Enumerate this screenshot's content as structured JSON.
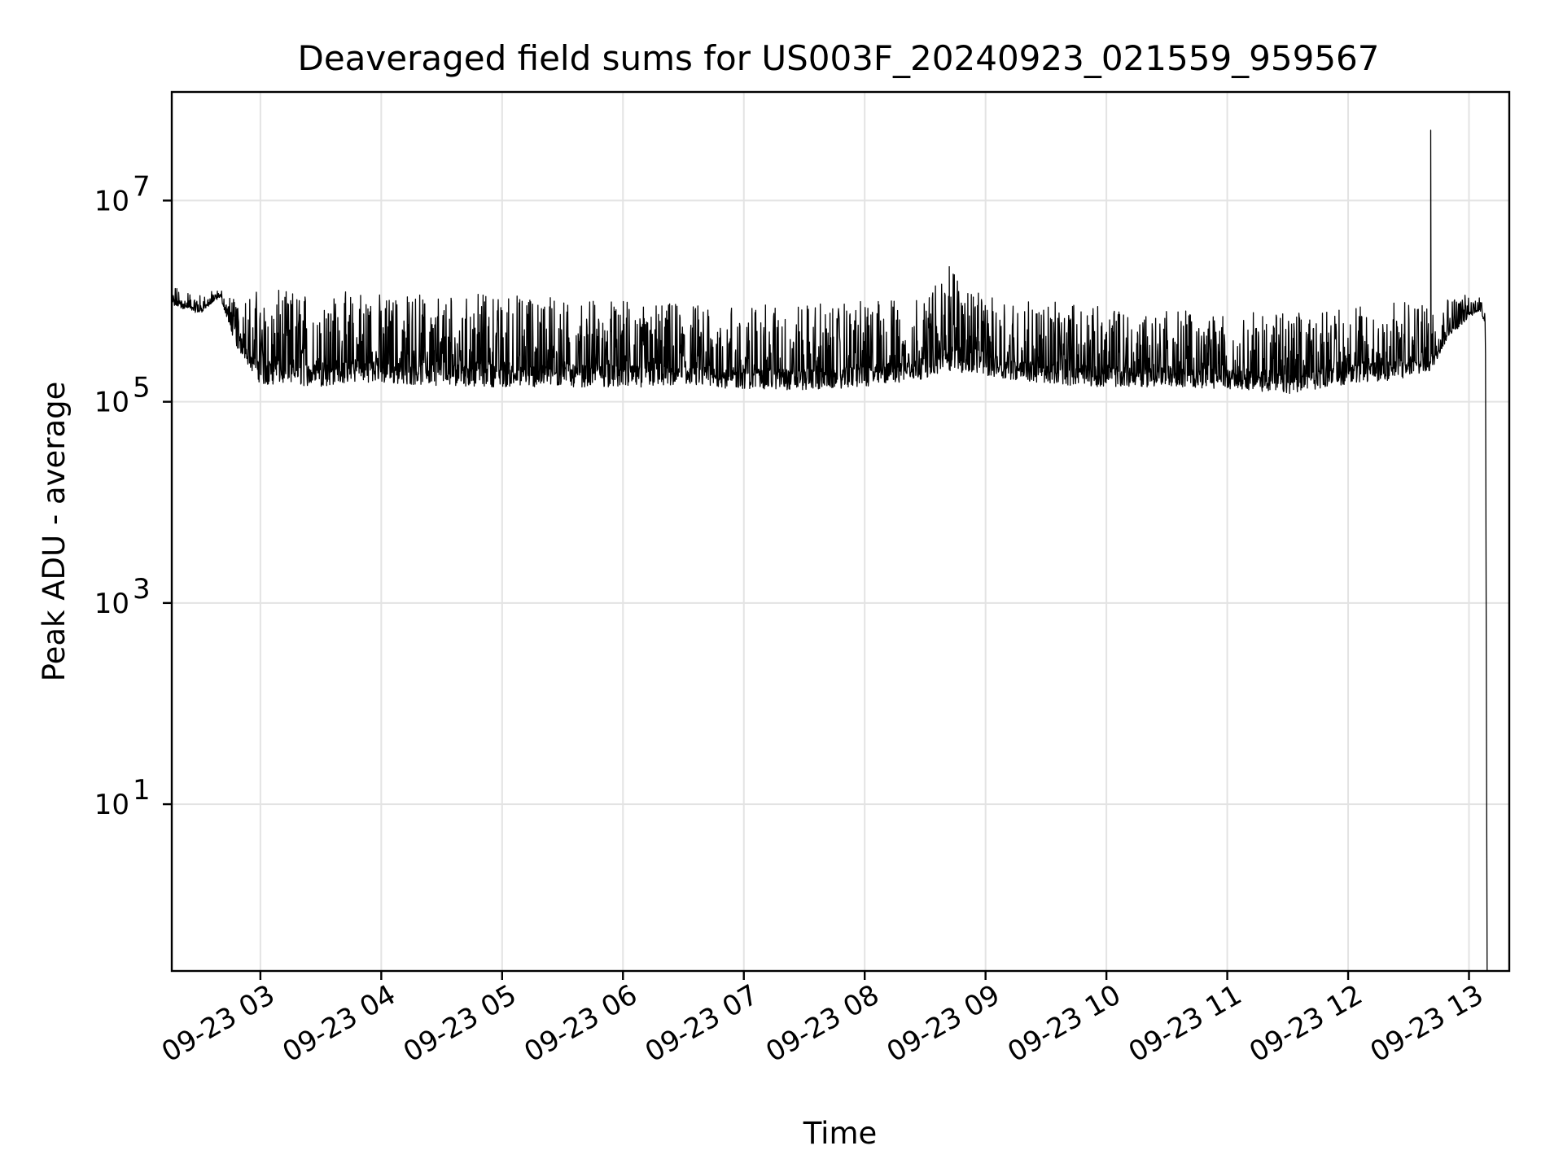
{
  "chart_data": {
    "type": "line",
    "title": "Deaveraged field sums for US003F_20240923_021559_959567",
    "xlabel": "Time",
    "ylabel": "Peak ADU - average",
    "y_scale": "log",
    "grid": true,
    "x_ticks": [
      "09-23 03",
      "09-23 04",
      "09-23 05",
      "09-23 06",
      "09-23 07",
      "09-23 08",
      "09-23 09",
      "09-23 10",
      "09-23 11",
      "09-23 12",
      "09-23 13"
    ],
    "y_ticks": [
      {
        "value": 10,
        "base": "10",
        "exp": "1"
      },
      {
        "value": 1000,
        "base": "10",
        "exp": "3"
      },
      {
        "value": 100000,
        "base": "10",
        "exp": "5"
      },
      {
        "value": 10000000,
        "base": "10",
        "exp": "7"
      }
    ],
    "xlim": [
      "2024-09-23 02:16",
      "2024-09-23 13:20"
    ],
    "ylim": [
      0.22,
      120000000
    ],
    "series": [
      {
        "color": "#000000",
        "x": [
          "2024-09-23 02:16",
          "2024-09-23 02:30",
          "2024-09-23 02:40",
          "2024-09-23 02:48",
          "2024-09-23 03:00",
          "2024-09-23 03:30",
          "2024-09-23 03:50",
          "2024-09-23 04:00",
          "2024-09-23 04:30",
          "2024-09-23 05:00",
          "2024-09-23 05:30",
          "2024-09-23 06:00",
          "2024-09-23 06:30",
          "2024-09-23 07:00",
          "2024-09-23 07:30",
          "2024-09-23 08:00",
          "2024-09-23 08:30",
          "2024-09-23 08:42",
          "2024-09-23 09:00",
          "2024-09-23 09:30",
          "2024-09-23 10:00",
          "2024-09-23 10:30",
          "2024-09-23 11:00",
          "2024-09-23 11:30",
          "2024-09-23 12:00",
          "2024-09-23 12:30",
          "2024-09-23 12:41",
          "2024-09-23 12:50",
          "2024-09-23 13:05",
          "2024-09-23 13:08"
        ],
        "low": [
          900000,
          750000,
          1100000,
          350000,
          150000,
          140000,
          160000,
          150000,
          145000,
          140000,
          140000,
          140000,
          140000,
          135000,
          130000,
          140000,
          170000,
          200000,
          180000,
          150000,
          140000,
          140000,
          135000,
          120000,
          150000,
          170000,
          200000,
          450000,
          800000,
          600000
        ],
        "high": [
          1400000,
          1200000,
          1300000,
          1100000,
          1300000,
          1250000,
          1300000,
          1200000,
          1150000,
          1200000,
          1100000,
          1000000,
          950000,
          900000,
          950000,
          1000000,
          1100000,
          2200000,
          1100000,
          1000000,
          900000,
          850000,
          800000,
          750000,
          850000,
          1000000,
          1000000,
          1100000,
          1200000,
          1000000
        ],
        "spikes": [
          {
            "x": "2024-09-23 08:42",
            "y": 2200000
          },
          {
            "x": "2024-09-23 12:41",
            "y": 50000000
          }
        ],
        "final_drop": {
          "x": "2024-09-23 13:09",
          "y": 0.22
        }
      }
    ]
  }
}
